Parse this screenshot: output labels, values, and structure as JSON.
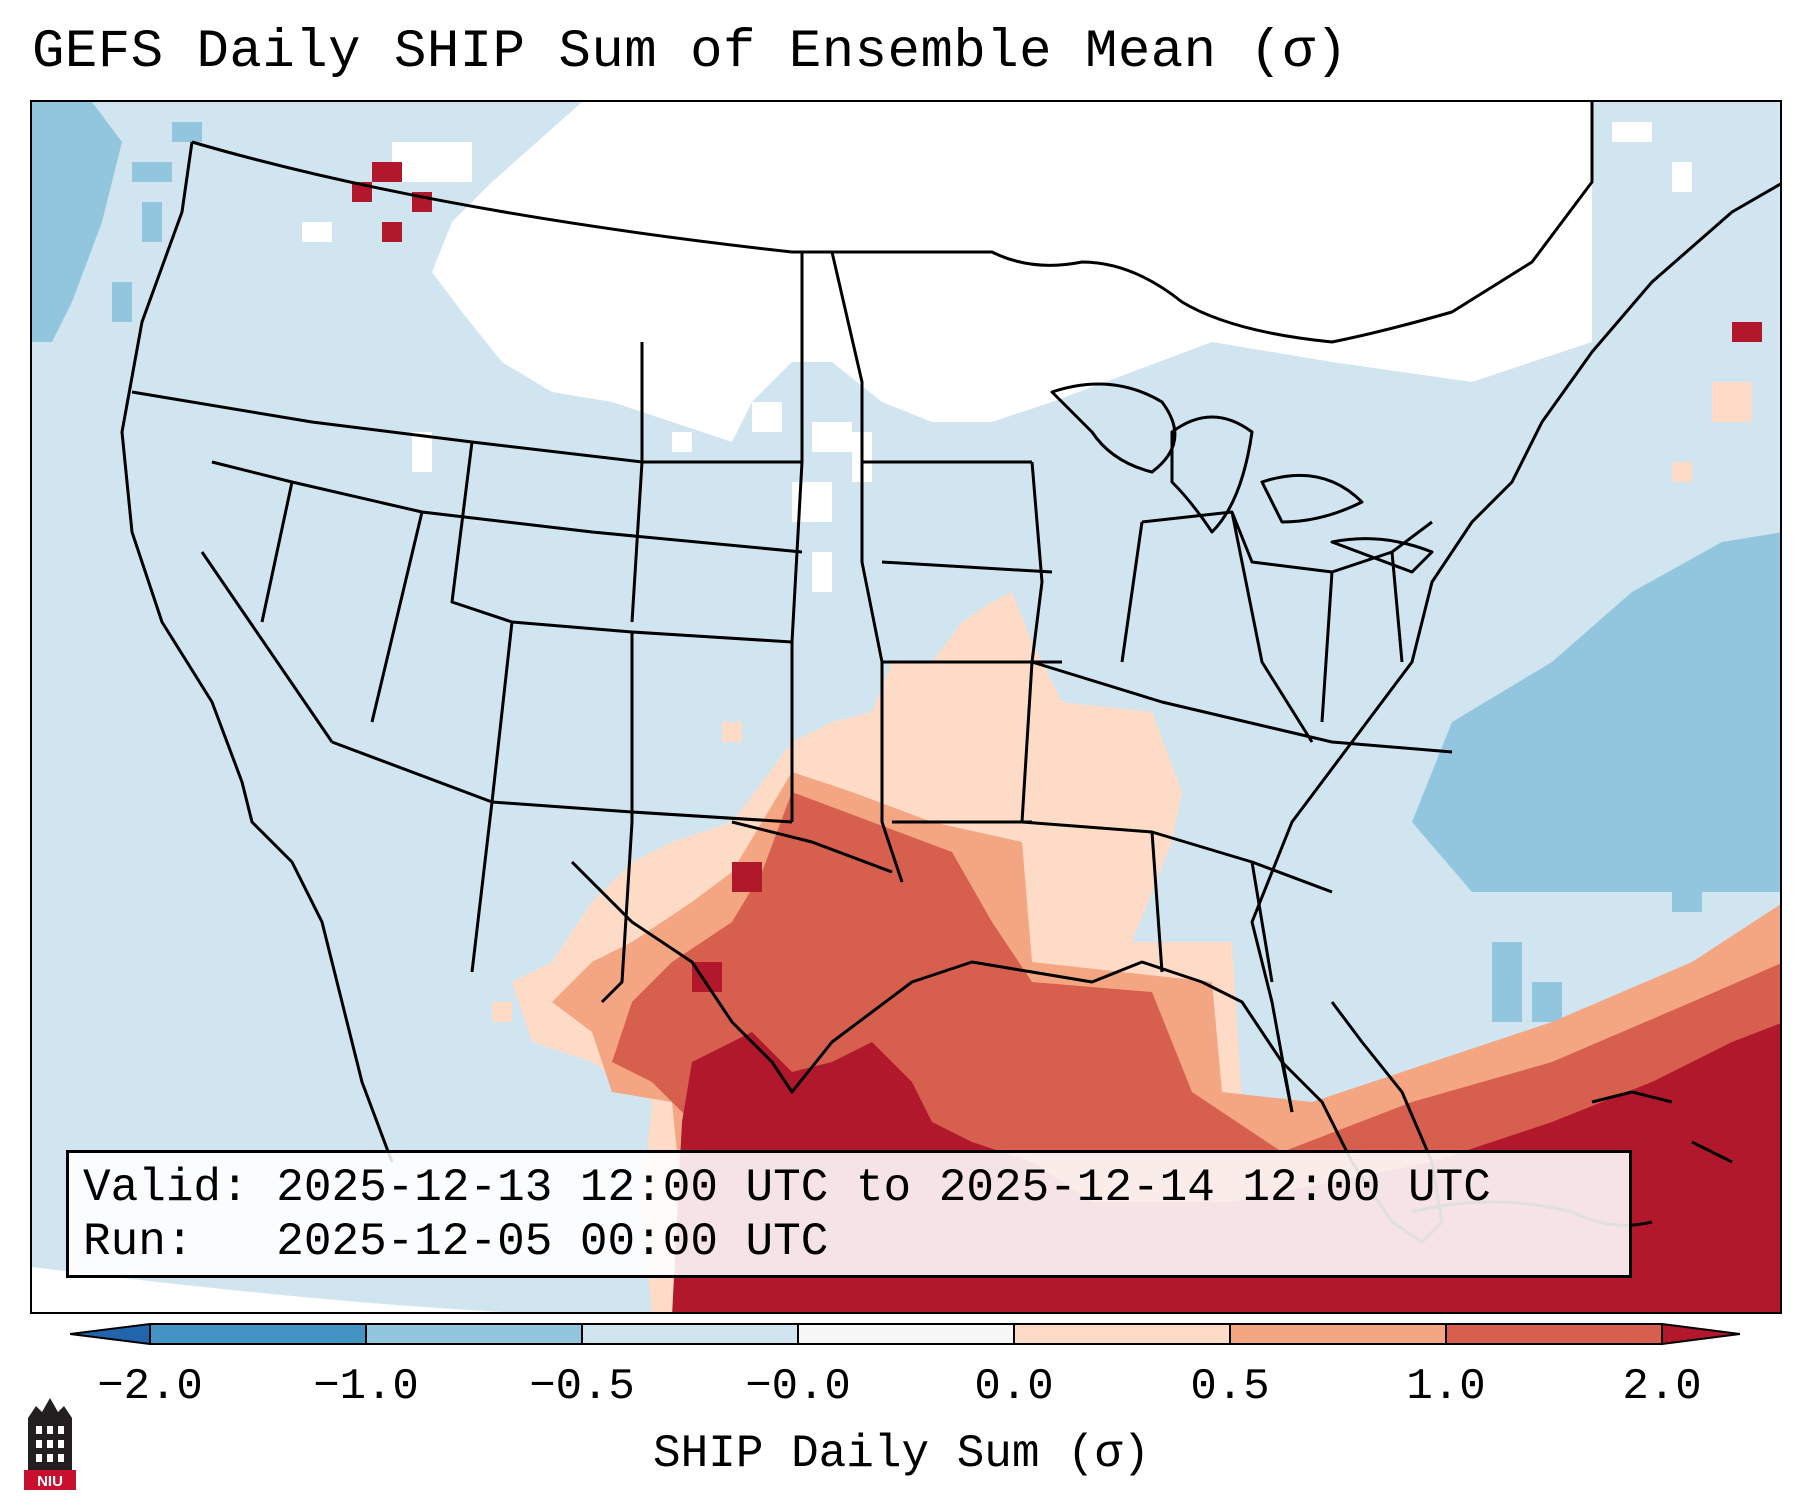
{
  "title": "GEFS Daily SHIP Sum of Ensemble Mean (σ)",
  "info": {
    "valid_label": "Valid:",
    "valid_value": "2025-12-13 12:00 UTC to 2025-12-14 12:00 UTC",
    "run_label": "Run:",
    "run_value": "2025-12-05 00:00 UTC"
  },
  "colorbar": {
    "label": "SHIP Daily Sum (σ)",
    "ticks": [
      "−2.0",
      "−1.0",
      "−0.5",
      "−0.0",
      "0.0",
      "0.5",
      "1.0",
      "2.0"
    ],
    "colors": [
      "#4393c3",
      "#92c5de",
      "#d1e5f0",
      "#f7f7f7",
      "#fddbc7",
      "#f4a582",
      "#d6604d",
      "#b2182b"
    ],
    "extend_low_color": "#2166ac",
    "extend_high_color": "#b2182b"
  },
  "palette": {
    "background": "#d1e5f0",
    "neutral": "#ffffff",
    "light_blue": "#92c5de",
    "light_red": "#fddbc7",
    "mid_red": "#f4a582",
    "red": "#d6604d",
    "dark_red": "#b2182b"
  },
  "logo": {
    "text": "NIU",
    "icon": "niu-tower-icon"
  }
}
